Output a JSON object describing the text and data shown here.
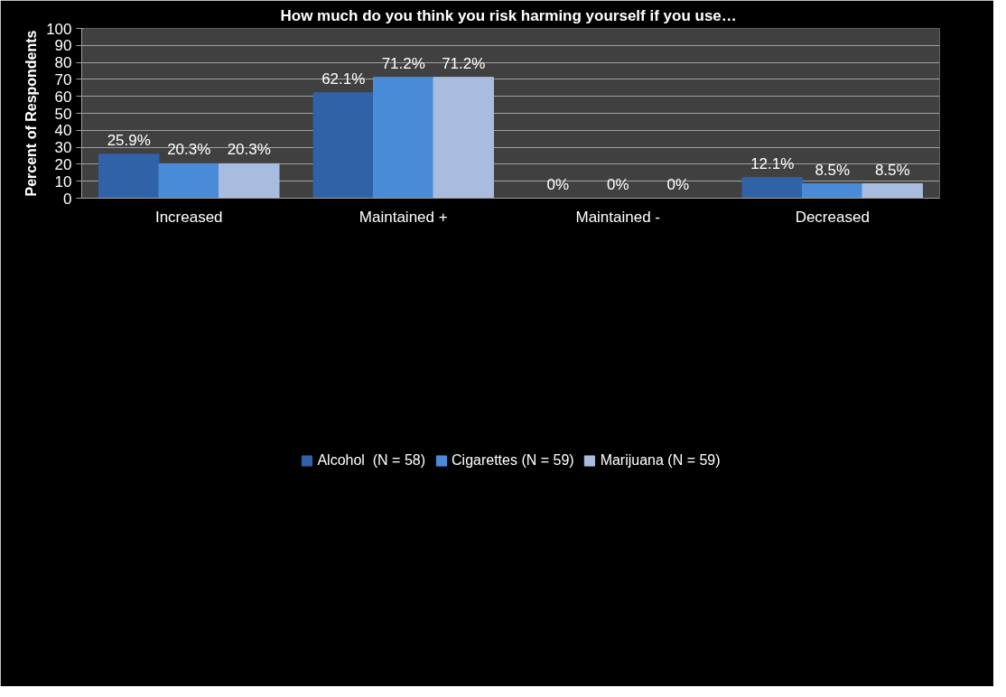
{
  "chart_data": {
    "type": "bar",
    "title": "How much do you think you risk harming yourself  if you use…",
    "ylabel": "Percent of Respondents",
    "categories": [
      "Increased",
      "Maintained +",
      "Maintained -",
      "Decreased"
    ],
    "series": [
      {
        "name": "Alcohol  (N = 58)",
        "color": "#2f62a6",
        "values": [
          25.9,
          62.1,
          0,
          12.1
        ],
        "value_labels": [
          "25.9%",
          "62.1%",
          "0%",
          "12.1%"
        ]
      },
      {
        "name": "Cigarettes (N = 59)",
        "color": "#4a8bd8",
        "values": [
          20.3,
          71.2,
          0,
          8.5
        ],
        "value_labels": [
          "20.3%",
          "71.2%",
          "0%",
          "8.5%"
        ]
      },
      {
        "name": "Marijuana (N = 59)",
        "color": "#a8bce0",
        "values": [
          20.3,
          71.2,
          0,
          8.5
        ],
        "value_labels": [
          "20.3%",
          "71.2%",
          "0%",
          "8.5%"
        ]
      }
    ],
    "ylim": [
      0,
      100
    ],
    "yticks": [
      0,
      10,
      20,
      30,
      40,
      50,
      60,
      70,
      80,
      90,
      100
    ],
    "grid": "y",
    "legend": "bottom"
  }
}
